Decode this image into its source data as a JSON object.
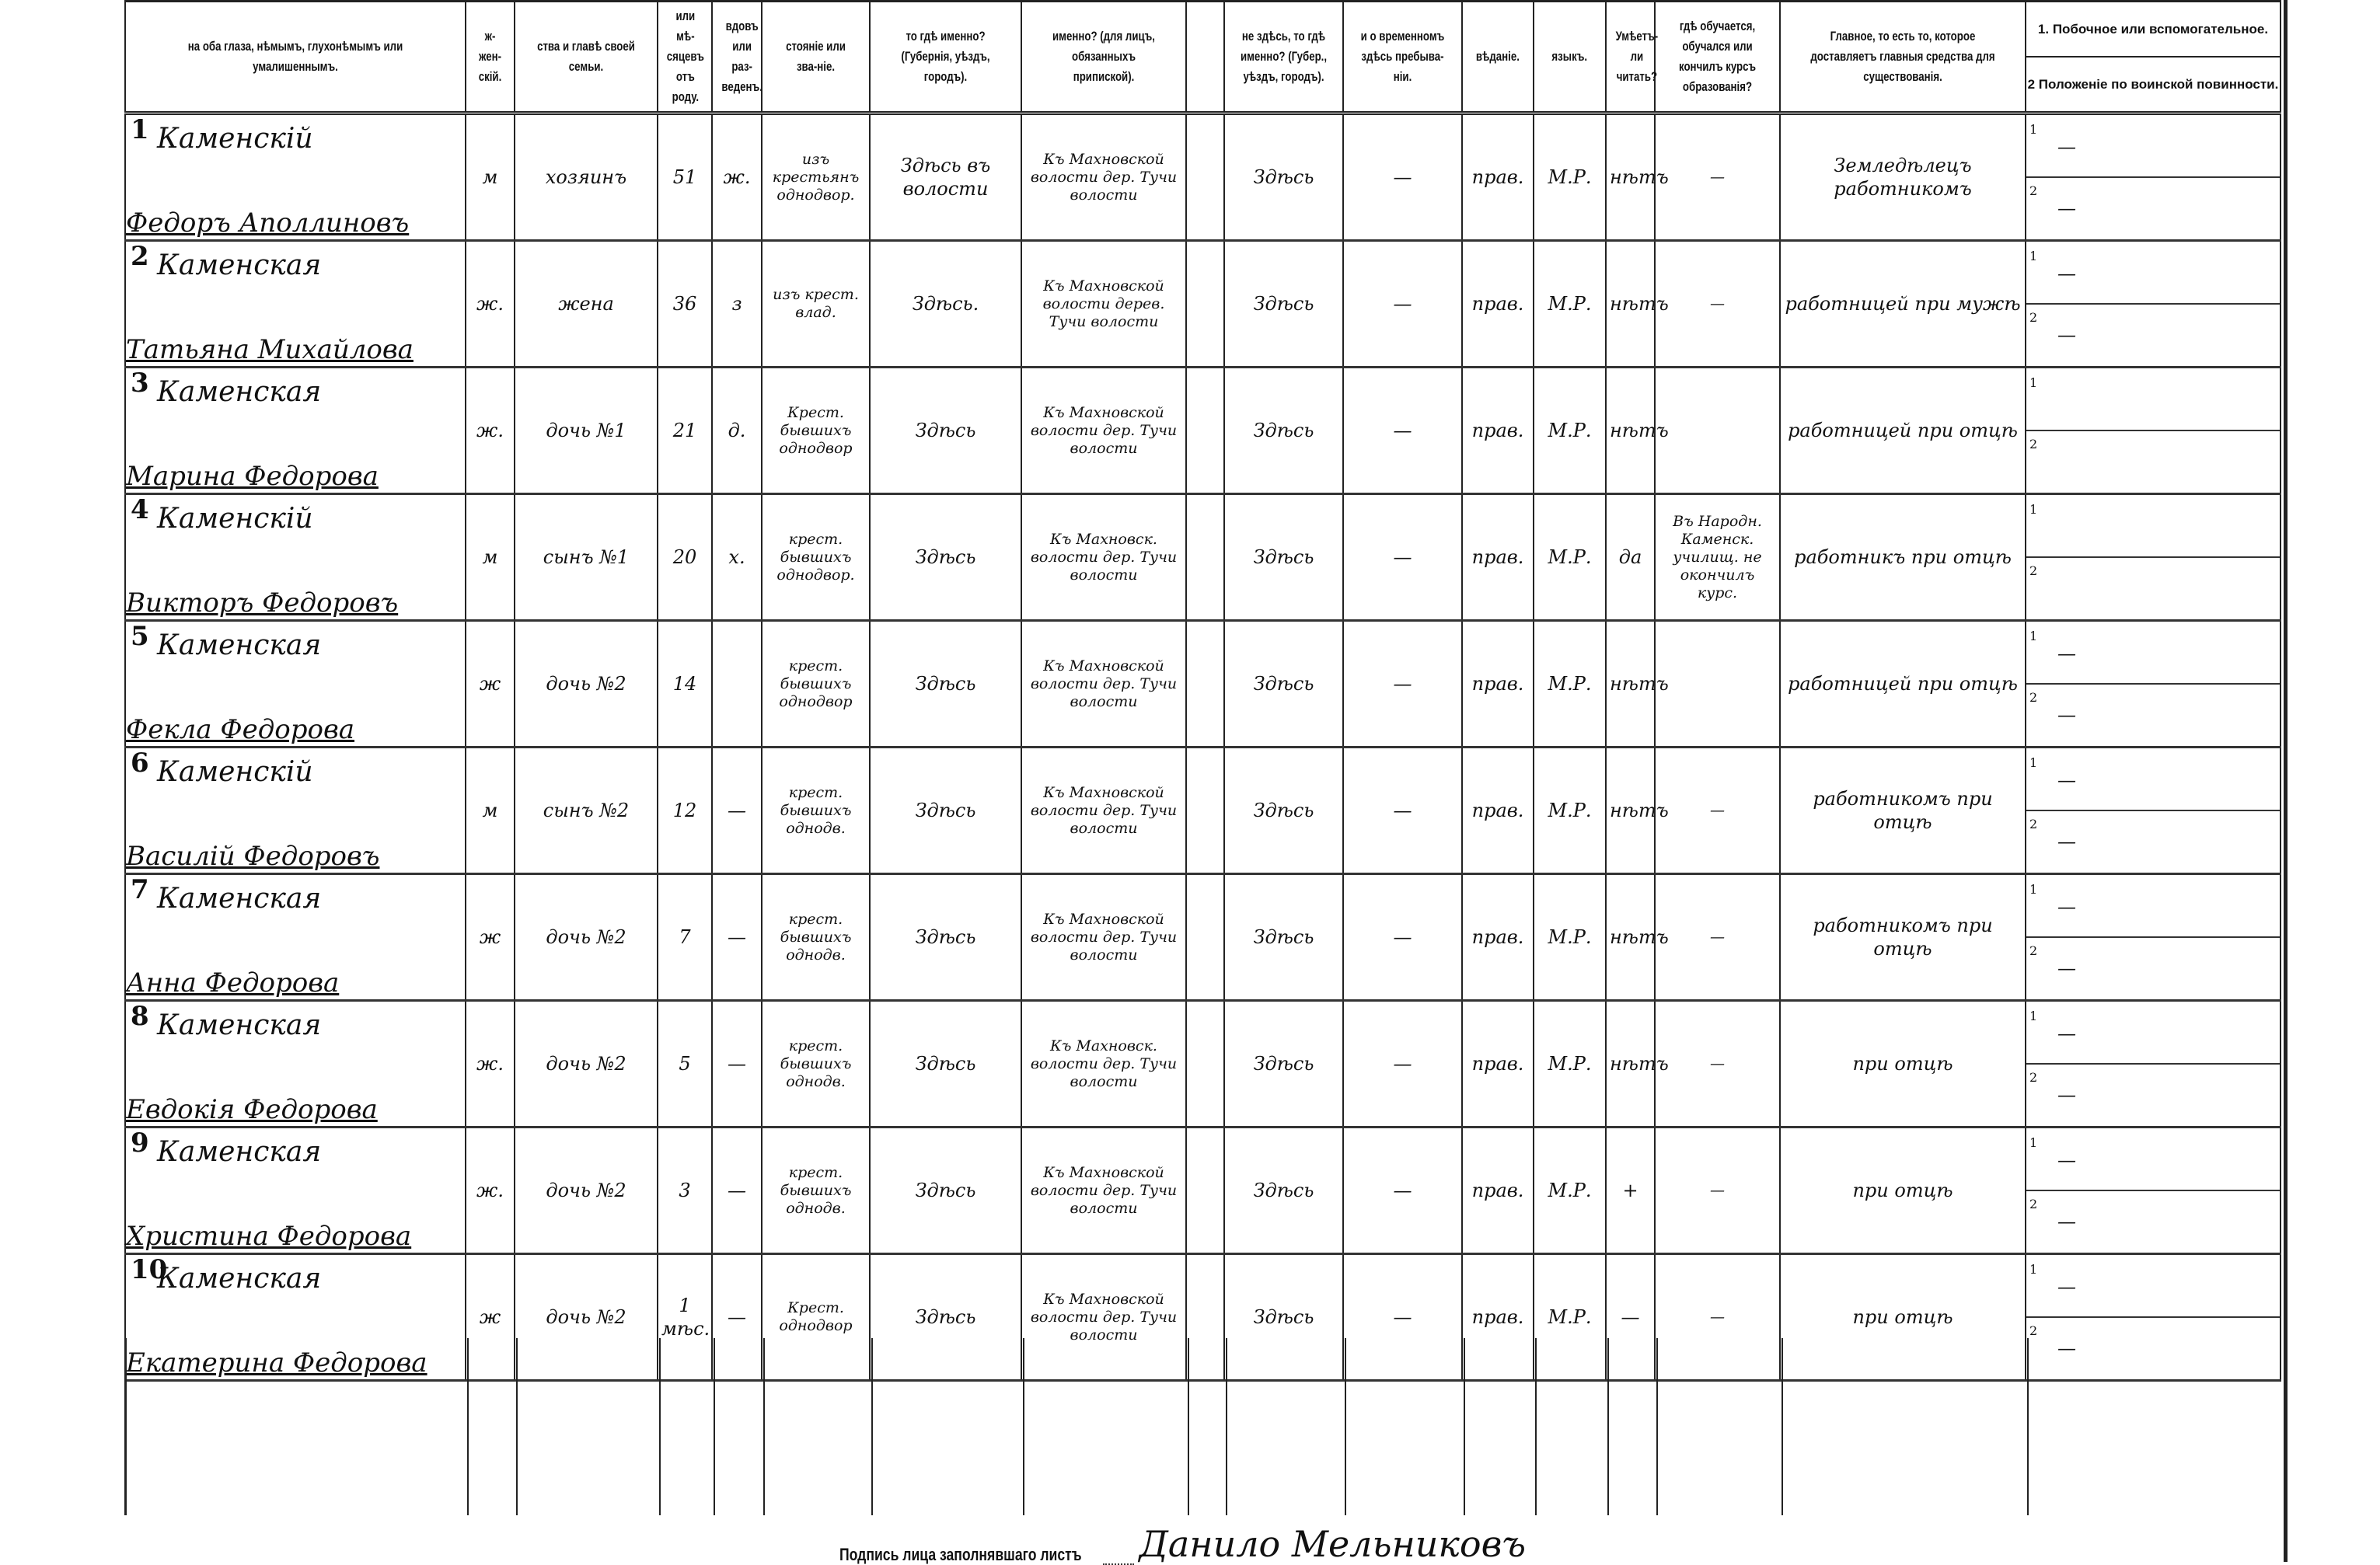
{
  "headers": [
    "на оба глаза, нѣмымъ, глухонѣмымъ или умалишеннымъ.",
    "ж-жен-скій.",
    "ства и главѣ своей семьи.",
    "или мѣ-сяцевъ отъ роду.",
    "вдовъ или раз-веденъ.",
    "стояніе или зва-ніе.",
    "то гдѣ именно? (Губернія, уѣздъ, городъ).",
    "именно? (для лицъ, обязанныхъ припиской).",
    "",
    "не здѣсь, то гдѣ именно? (Губер., уѣздъ, городъ).",
    "и о временномъ здѣсь пребыва-ніи.",
    "вѣданіе.",
    "языкъ.",
    "Умѣетъ-ли читать?",
    "гдѣ обучается, обучался или кончилъ курсъ образованія?",
    "Главное, то есть то, которое доставляетъ главныя средства для существованія."
  ],
  "secondary_header": [
    "1. Побочное или вспомогательное.",
    "2 Положеніе по воинской повинности."
  ],
  "rows": [
    {
      "num": "1",
      "surname": "Каменскій",
      "given": "Федоръ Аполлиновъ",
      "sex": "м",
      "relation": "хозяинъ",
      "age": "51",
      "marital": "ж.",
      "estate": "изъ крестьянъ однодвор.",
      "birthplace": "Здѣсь въ волости",
      "registered": "Къ Махновской волости дер. Тучи волости",
      "blank": "",
      "residence": "Здѣсь",
      "temporary": "—",
      "religion": "прав.",
      "language": "М.Р.",
      "literate": "нѣтъ",
      "education": "—",
      "occupation": "Земледѣлецъ работникомъ",
      "secondary": [
        "—",
        "—"
      ]
    },
    {
      "num": "2",
      "surname": "Каменская",
      "given": "Татьяна Михайлова",
      "sex": "ж.",
      "relation": "жена",
      "age": "36",
      "marital": "з",
      "estate": "изъ крест. влад.",
      "birthplace": "Здѣсь.",
      "registered": "Къ Махновской волости дерев. Тучи волости",
      "blank": "",
      "residence": "Здѣсь",
      "temporary": "—",
      "religion": "прав.",
      "language": "М.Р.",
      "literate": "нѣтъ",
      "education": "—",
      "occupation": "работницей при мужѣ",
      "secondary": [
        "—",
        "—"
      ]
    },
    {
      "num": "3",
      "surname": "Каменская",
      "given": "Марина Федорова",
      "sex": "ж.",
      "relation": "дочь №1",
      "age": "21",
      "marital": "д.",
      "estate": "Крест. бывшихъ однодвор",
      "birthplace": "Здѣсь",
      "registered": "Къ Махновской волости дер. Тучи волости",
      "blank": "",
      "residence": "Здѣсь",
      "temporary": "—",
      "religion": "прав.",
      "language": "М.Р.",
      "literate": "нѣтъ",
      "education": "",
      "occupation": "работницей при отцѣ",
      "secondary": [
        "",
        ""
      ]
    },
    {
      "num": "4",
      "surname": "Каменскій",
      "given": "Викторъ Федоровъ",
      "sex": "м",
      "relation": "сынъ №1",
      "age": "20",
      "marital": "х.",
      "estate": "крест. бывшихъ однодвор.",
      "birthplace": "Здѣсь",
      "registered": "Къ Махновск. волости дер. Тучи волости",
      "blank": "",
      "residence": "Здѣсь",
      "temporary": "—",
      "religion": "прав.",
      "language": "М.Р.",
      "literate": "да",
      "education": "Въ Народн. Каменск. училищ. не окончилъ курс.",
      "occupation": "работникъ при отцѣ",
      "secondary": [
        "",
        ""
      ]
    },
    {
      "num": "5",
      "surname": "Каменская",
      "given": "Фекла Федорова",
      "sex": "ж",
      "relation": "дочь №2",
      "age": "14",
      "marital": "",
      "estate": "крест. бывшихъ однодвор",
      "birthplace": "Здѣсь",
      "registered": "Къ Махновской волости дер. Тучи волости",
      "blank": "",
      "residence": "Здѣсь",
      "temporary": "—",
      "religion": "прав.",
      "language": "М.Р.",
      "literate": "нѣтъ",
      "education": "",
      "occupation": "работницей при отцѣ",
      "secondary": [
        "—",
        "—"
      ]
    },
    {
      "num": "6",
      "surname": "Каменскій",
      "given": "Василій Федоровъ",
      "sex": "м",
      "relation": "сынъ №2",
      "age": "12",
      "marital": "—",
      "estate": "крест. бывшихъ однодв.",
      "birthplace": "Здѣсь",
      "registered": "Къ Махновской волости дер. Тучи волости",
      "blank": "",
      "residence": "Здѣсь",
      "temporary": "—",
      "religion": "прав.",
      "language": "М.Р.",
      "literate": "нѣтъ",
      "education": "—",
      "occupation": "работникомъ при отцѣ",
      "secondary": [
        "—",
        "—"
      ]
    },
    {
      "num": "7",
      "surname": "Каменская",
      "given": "Анна Федорова",
      "sex": "ж",
      "relation": "дочь №2",
      "age": "7",
      "marital": "—",
      "estate": "крест. бывшихъ однодв.",
      "birthplace": "Здѣсь",
      "registered": "Къ Махновской волости дер. Тучи волости",
      "blank": "",
      "residence": "Здѣсь",
      "temporary": "—",
      "religion": "прав.",
      "language": "М.Р.",
      "literate": "нѣтъ",
      "education": "—",
      "occupation": "работникомъ при отцѣ",
      "secondary": [
        "—",
        "—"
      ]
    },
    {
      "num": "8",
      "surname": "Каменская",
      "given": "Евдокія Федорова",
      "sex": "ж.",
      "relation": "дочь №2",
      "age": "5",
      "marital": "—",
      "estate": "крест. бывшихъ однодв.",
      "birthplace": "Здѣсь",
      "registered": "Къ Махновск. волости дер. Тучи волости",
      "blank": "",
      "residence": "Здѣсь",
      "temporary": "—",
      "religion": "прав.",
      "language": "М.Р.",
      "literate": "нѣтъ",
      "education": "—",
      "occupation": "при отцѣ",
      "secondary": [
        "—",
        "—"
      ]
    },
    {
      "num": "9",
      "surname": "Каменская",
      "given": "Христина Федорова",
      "sex": "ж.",
      "relation": "дочь №2",
      "age": "3",
      "marital": "—",
      "estate": "крест. бывшихъ однодв.",
      "birthplace": "Здѣсь",
      "registered": "Къ Махновской волости дер. Тучи волости",
      "blank": "",
      "residence": "Здѣсь",
      "temporary": "—",
      "religion": "прав.",
      "language": "М.Р.",
      "literate": "+",
      "education": "—",
      "occupation": "при отцѣ",
      "secondary": [
        "—",
        "—"
      ]
    },
    {
      "num": "10",
      "surname": "Каменская",
      "given": "Екатерина Федорова",
      "sex": "ж",
      "relation": "дочь №2",
      "age": "1 мѣс.",
      "marital": "—",
      "estate": "Крест. однодвор",
      "birthplace": "Здѣсь",
      "registered": "Къ Махновской волости дер. Тучи волости",
      "blank": "",
      "residence": "Здѣсь",
      "temporary": "—",
      "religion": "прав.",
      "language": "М.Р.",
      "literate": "—",
      "education": "—",
      "occupation": "при отцѣ",
      "secondary": [
        "—",
        "—"
      ]
    }
  ],
  "footer": {
    "label": "Подпись лица заполнявшаго листъ",
    "signature": "Данило Мельниковъ"
  }
}
